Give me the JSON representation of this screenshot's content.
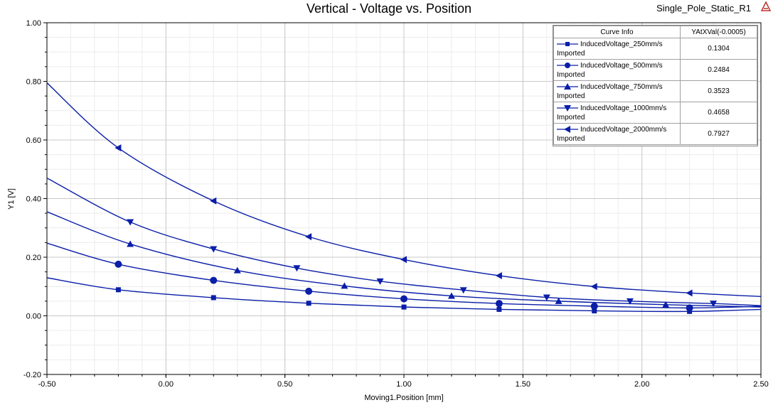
{
  "header": {
    "title": "Vertical - Voltage vs. Position",
    "design_name": "Single_Pole_Static_R1"
  },
  "legend": {
    "col_curve": "Curve Info",
    "col_value": "YAtXVal(-0.0005)",
    "source_label": "Imported"
  },
  "chart_data": {
    "type": "line",
    "title": "Vertical - Voltage vs. Position",
    "xlabel": "Moving1.Position [mm]",
    "ylabel": "Y1 [V]",
    "xlim": [
      -0.5,
      2.5
    ],
    "ylim": [
      -0.2,
      1.0
    ],
    "xticks": [
      "-0.50",
      "0.00",
      "0.50",
      "1.00",
      "1.50",
      "2.00",
      "2.50"
    ],
    "yticks": [
      "-0.20",
      "0.00",
      "0.20",
      "0.40",
      "0.60",
      "0.80",
      "1.00"
    ],
    "grid": true,
    "legend_position": "top-right",
    "line_color": "#0a1ea8",
    "series": [
      {
        "name": "InducedVoltage_250mm/s",
        "source": "Imported",
        "marker": "square",
        "value_at": "0.1304",
        "x": [
          -0.5,
          -0.2,
          0.2,
          0.6,
          1.0,
          1.4,
          1.8,
          2.2,
          2.5
        ],
        "y": [
          0.13,
          0.089,
          0.062,
          0.043,
          0.03,
          0.022,
          0.017,
          0.015,
          0.022
        ],
        "marker_x": [
          -0.2,
          0.2,
          0.6,
          1.0,
          1.4,
          1.8,
          2.2
        ]
      },
      {
        "name": "InducedVoltage_500mm/s",
        "source": "Imported",
        "marker": "circle",
        "value_at": "0.2484",
        "x": [
          -0.5,
          -0.2,
          0.2,
          0.6,
          1.0,
          1.4,
          1.8,
          2.2,
          2.5
        ],
        "y": [
          0.248,
          0.176,
          0.121,
          0.084,
          0.058,
          0.042,
          0.033,
          0.027,
          0.033
        ],
        "marker_x": [
          -0.2,
          0.2,
          0.6,
          1.0,
          1.4,
          1.8,
          2.2
        ]
      },
      {
        "name": "InducedVoltage_750mm/s",
        "source": "Imported",
        "marker": "triangle-up",
        "value_at": "0.3523",
        "x": [
          -0.5,
          -0.15,
          0.3,
          0.75,
          1.2,
          1.65,
          2.1,
          2.5
        ],
        "y": [
          0.355,
          0.245,
          0.155,
          0.102,
          0.068,
          0.05,
          0.038,
          0.03
        ],
        "marker_x": [
          -0.15,
          0.3,
          0.75,
          1.2,
          1.65,
          2.1
        ]
      },
      {
        "name": "InducedVoltage_1000mm/s",
        "source": "Imported",
        "marker": "triangle-down",
        "value_at": "0.4658",
        "x": [
          -0.5,
          -0.15,
          0.2,
          0.55,
          0.9,
          1.25,
          1.6,
          1.95,
          2.3,
          2.5
        ],
        "y": [
          0.47,
          0.32,
          0.228,
          0.163,
          0.118,
          0.088,
          0.063,
          0.05,
          0.042,
          0.035
        ],
        "marker_x": [
          -0.15,
          0.2,
          0.55,
          0.9,
          1.25,
          1.6,
          1.95,
          2.3
        ]
      },
      {
        "name": "InducedVoltage_2000mm/s",
        "source": "Imported",
        "marker": "triangle-left",
        "value_at": "0.7927",
        "x": [
          -0.5,
          -0.2,
          0.2,
          0.6,
          1.0,
          1.4,
          1.8,
          2.2,
          2.5
        ],
        "y": [
          0.795,
          0.573,
          0.392,
          0.27,
          0.192,
          0.137,
          0.1,
          0.078,
          0.066
        ],
        "marker_x": [
          -0.2,
          0.2,
          0.6,
          1.0,
          1.4,
          1.8,
          2.2
        ]
      }
    ]
  }
}
